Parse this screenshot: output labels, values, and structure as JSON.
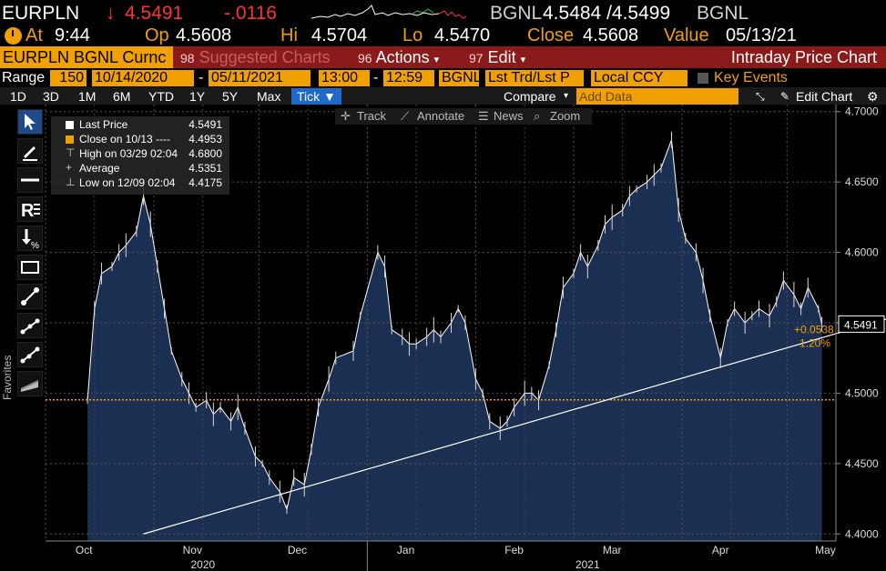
{
  "header": {
    "ticker": "EURPLN",
    "arrow": "↓",
    "last": "4.5491",
    "change": "-.0116",
    "source": "BGNL",
    "bid_ask": "4.5484 /4.5499",
    "source2": "BGNL"
  },
  "stats": {
    "at_label": "At",
    "at_value": "9:44",
    "op_label": "Op",
    "op_value": "4.5608",
    "hi_label": "Hi",
    "hi_value": "4.5704",
    "lo_label": "Lo",
    "lo_value": "4.5470",
    "close_label": "Close",
    "close_value": "4.5608",
    "value_label": "Value",
    "value_value": "05/13/21"
  },
  "titlebar": {
    "security": "EURPLN BGNL Curnc",
    "suggested_num": "98",
    "suggested": "Suggested Charts",
    "actions_num": "96",
    "actions": "Actions",
    "edit_num": "97",
    "edit": "Edit",
    "title": "Intraday Price Chart"
  },
  "range": {
    "label": "Range",
    "bars": "150",
    "from": "10/14/2020",
    "dash": "-",
    "to": "05/11/2021",
    "time_from": "13:00",
    "time_dash": "-",
    "time_to": "12:59",
    "source": "BGNL",
    "field": "Lst Trd/Lst P",
    "ccy": "Local CCY",
    "key_events": "Key Events"
  },
  "toolbar": {
    "periods": [
      "1D",
      "3D",
      "1M",
      "6M",
      "YTD",
      "1Y",
      "5Y",
      "Max"
    ],
    "tick": "Tick ▼",
    "compare": "Compare",
    "add_data": "Add Data",
    "edit_chart": "Edit Chart"
  },
  "sidebar": {
    "favorites": "Favorites"
  },
  "chart_tools": {
    "track": "Track",
    "annotate": "Annotate",
    "news": "News",
    "zoom": "Zoom"
  },
  "legend": {
    "rows": [
      {
        "label": "Last Price",
        "value": "4.5491"
      },
      {
        "label": "Close on 10/13 ----",
        "value": "4.4953"
      },
      {
        "label": "High on 03/29 02:04",
        "value": "4.6800"
      },
      {
        "label": "Average",
        "value": "4.5351"
      },
      {
        "label": "Low on 12/09 02:04",
        "value": "4.4175"
      }
    ]
  },
  "colors": {
    "accent": "#f0a000",
    "down": "#ff3333",
    "titlebar": "#8b1a1a",
    "area": "#1b2f52",
    "selected": "#1e6acb"
  },
  "chart_data": {
    "type": "area",
    "ylim": [
      4.395,
      4.705
    ],
    "yticks": [
      "4.4000",
      "4.4500",
      "4.5000",
      "4.5500",
      "4.6000",
      "4.6500",
      "4.7000"
    ],
    "xticks": [
      "Oct",
      "Nov",
      "Dec",
      "Jan",
      "Feb",
      "Mar",
      "Apr",
      "May"
    ],
    "years": [
      "2020",
      "2021"
    ],
    "series": [
      {
        "x": [
          "2020-10-13",
          "2020-10-15",
          "2020-10-17",
          "2020-10-20",
          "2020-10-22",
          "2020-10-24",
          "2020-10-27",
          "2020-10-29",
          "2020-10-31",
          "2020-11-02",
          "2020-11-04",
          "2020-11-06",
          "2020-11-09",
          "2020-11-11",
          "2020-11-13",
          "2020-11-16",
          "2020-11-18",
          "2020-11-20",
          "2020-11-23",
          "2020-11-25",
          "2020-11-27",
          "2020-11-30",
          "2020-12-02",
          "2020-12-04",
          "2020-12-07",
          "2020-12-09",
          "2020-12-11",
          "2020-12-14",
          "2020-12-16",
          "2020-12-18",
          "2020-12-21",
          "2020-12-23",
          "2020-12-28",
          "2020-12-30",
          "2021-01-04",
          "2021-01-06",
          "2021-01-08",
          "2021-01-11",
          "2021-01-13",
          "2021-01-15",
          "2021-01-18",
          "2021-01-20",
          "2021-01-22",
          "2021-01-25",
          "2021-01-27",
          "2021-01-29",
          "2021-02-01",
          "2021-02-03",
          "2021-02-05",
          "2021-02-08",
          "2021-02-10",
          "2021-02-12",
          "2021-02-15",
          "2021-02-17",
          "2021-02-19",
          "2021-02-22",
          "2021-02-24",
          "2021-02-26",
          "2021-03-01",
          "2021-03-03",
          "2021-03-05",
          "2021-03-08",
          "2021-03-10",
          "2021-03-12",
          "2021-03-15",
          "2021-03-17",
          "2021-03-19",
          "2021-03-22",
          "2021-03-24",
          "2021-03-26",
          "2021-03-29",
          "2021-03-31",
          "2021-04-02",
          "2021-04-05",
          "2021-04-07",
          "2021-04-09",
          "2021-04-12",
          "2021-04-14",
          "2021-04-16",
          "2021-04-19",
          "2021-04-21",
          "2021-04-23",
          "2021-04-26",
          "2021-04-28",
          "2021-04-30",
          "2021-05-03",
          "2021-05-05",
          "2021-05-07",
          "2021-05-10",
          "2021-05-11"
        ],
        "values": [
          4.495,
          4.56,
          4.585,
          4.59,
          4.6,
          4.605,
          4.615,
          4.64,
          4.62,
          4.59,
          4.56,
          4.53,
          4.51,
          4.5,
          4.49,
          4.495,
          4.485,
          4.49,
          4.48,
          4.49,
          4.475,
          4.455,
          4.45,
          4.44,
          4.43,
          4.4175,
          4.44,
          4.435,
          4.46,
          4.49,
          4.51,
          4.525,
          4.53,
          4.555,
          4.6,
          4.59,
          4.545,
          4.54,
          4.535,
          4.535,
          4.54,
          4.545,
          4.54,
          4.55,
          4.56,
          4.55,
          4.51,
          4.5,
          4.48,
          4.475,
          4.48,
          4.49,
          4.5,
          4.5,
          4.495,
          4.52,
          4.545,
          4.575,
          4.585,
          4.6,
          4.59,
          4.605,
          4.62,
          4.625,
          4.63,
          4.64,
          4.645,
          4.65,
          4.655,
          4.66,
          4.68,
          4.63,
          4.61,
          4.6,
          4.58,
          4.555,
          4.525,
          4.55,
          4.56,
          4.55,
          4.555,
          4.56,
          4.555,
          4.565,
          4.58,
          4.57,
          4.56,
          4.575,
          4.56,
          4.5491
        ]
      }
    ],
    "close_line": 4.4953,
    "trendline": {
      "x": [
        "2020-10-29",
        "2021-05-31"
      ],
      "y": [
        4.4,
        4.5575
      ]
    },
    "annotation_change": "+0.0538",
    "annotation_pct": "1.20%",
    "last_label": "4.5491",
    "grid": true
  }
}
